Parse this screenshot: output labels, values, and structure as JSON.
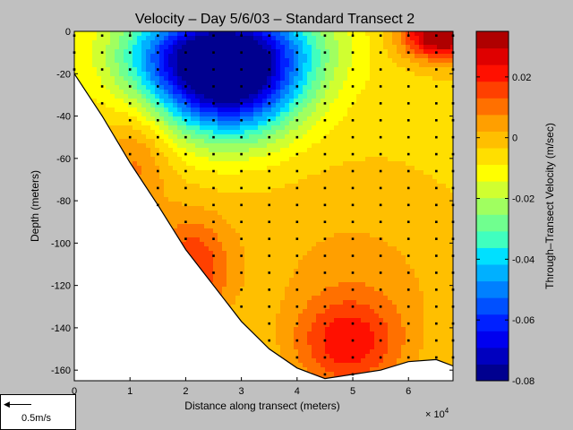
{
  "chart_data": {
    "type": "heatmap",
    "title": "Velocity – Day 5/6/03 – Standard Transect 2",
    "xlabel": "Distance along transect (meters)",
    "ylabel": "Depth (meters)",
    "x_multiplier": "× 10",
    "x_multiplier_exp": "4",
    "xlim": [
      0,
      68000
    ],
    "ylim": [
      -165,
      0
    ],
    "x_ticks": [
      "0",
      "1",
      "2",
      "3",
      "4",
      "5",
      "6"
    ],
    "y_ticks": [
      "0",
      "-20",
      "-40",
      "-60",
      "-80",
      "-100",
      "-120",
      "-140",
      "-160"
    ],
    "colorbar": {
      "label": "Through–Transect Velocity (m/sec)",
      "range": [
        -0.08,
        0.035
      ],
      "ticks": [
        "0.02",
        "0",
        "-0.02",
        "-0.04",
        "-0.06",
        "-0.08"
      ],
      "colors": [
        "#00008f",
        "#0000bf",
        "#0000ef",
        "#0020ff",
        "#0050ff",
        "#0080ff",
        "#00b0ff",
        "#00e0ff",
        "#40ffbf",
        "#70ff8f",
        "#a0ff60",
        "#d0ff30",
        "#ffff00",
        "#ffdf00",
        "#ffbf00",
        "#ff9f00",
        "#ff7000",
        "#ff4000",
        "#ff1000",
        "#df0000",
        "#af0000"
      ]
    },
    "bottom_profile": {
      "x": [
        0,
        5000,
        10000,
        15000,
        20000,
        25000,
        30000,
        35000,
        40000,
        45000,
        50000,
        55000,
        60000,
        65000,
        68000
      ],
      "depth": [
        -20,
        -40,
        -62,
        -82,
        -103,
        -120,
        -137,
        -150,
        -159,
        -164,
        -162,
        -160,
        -156,
        -155,
        -158
      ]
    },
    "station_x": [
      0,
      5000,
      10000,
      15000,
      20000,
      25000,
      30000,
      35000,
      40000,
      45000,
      50000,
      55000,
      60000,
      65000,
      68000
    ],
    "field": {
      "description": "Through-transect velocity field (m/sec), gaussian-component approximation",
      "background": -0.005,
      "components": [
        {
          "x": 28000,
          "depth": -22,
          "sx": 9000,
          "sd": 20,
          "amp": -0.072
        },
        {
          "x": 18000,
          "depth": -10,
          "sx": 9000,
          "sd": 16,
          "amp": -0.03
        },
        {
          "x": 35000,
          "depth": -5,
          "sx": 10000,
          "sd": 16,
          "amp": -0.02
        },
        {
          "x": 49000,
          "depth": -148,
          "sx": 7000,
          "sd": 16,
          "amp": 0.024
        },
        {
          "x": 55000,
          "depth": -120,
          "sx": 12000,
          "sd": 30,
          "amp": 0.006
        },
        {
          "x": 21000,
          "depth": -112,
          "sx": 5000,
          "sd": 18,
          "amp": 0.022
        },
        {
          "x": 11000,
          "depth": -62,
          "sx": 4500,
          "sd": 18,
          "amp": 0.014
        },
        {
          "x": 66000,
          "depth": -2,
          "sx": 5000,
          "sd": 8,
          "amp": 0.045
        },
        {
          "x": 40000,
          "depth": -100,
          "sx": 15000,
          "sd": 30,
          "amp": 0.004
        }
      ]
    }
  },
  "scale_legend": {
    "label": "0.5m/s"
  }
}
